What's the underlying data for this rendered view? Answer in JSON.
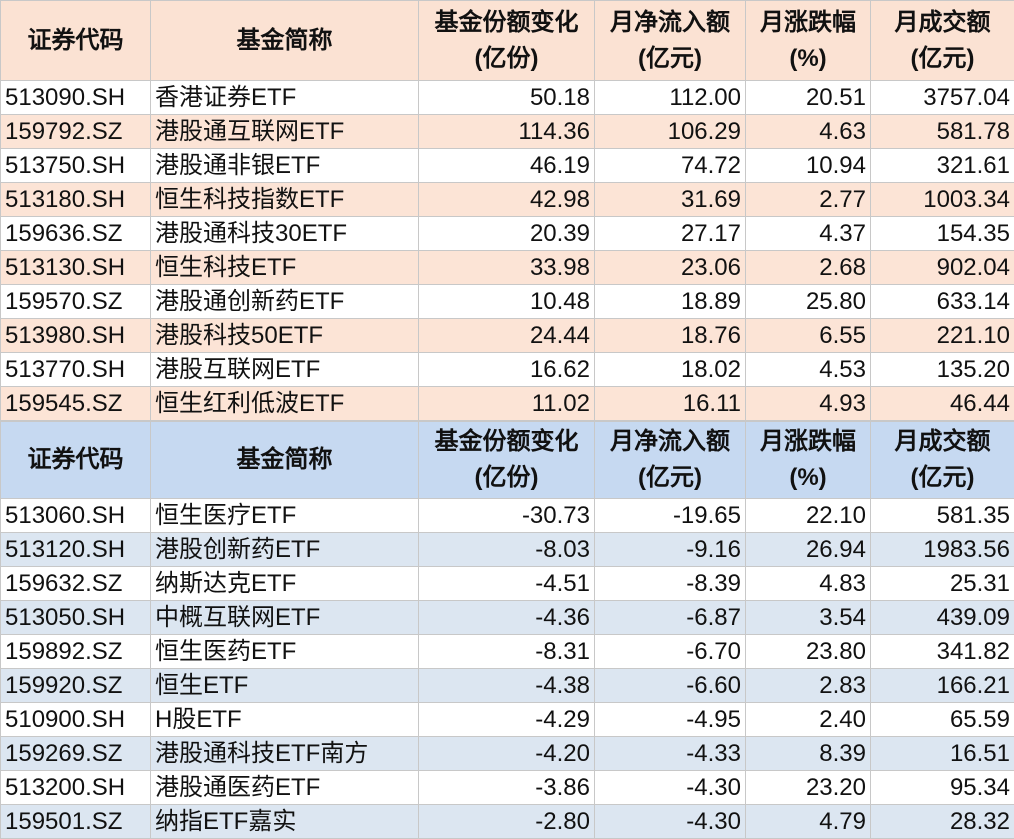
{
  "tables": [
    {
      "header": [
        [
          "证券代码"
        ],
        [
          "基金简称"
        ],
        [
          "基金份额变化",
          "(亿份)"
        ],
        [
          "月净流入额",
          "(亿元)"
        ],
        [
          "月涨跌幅",
          "(%)"
        ],
        [
          "月成交额",
          "(亿元)"
        ]
      ],
      "rows": [
        [
          "513090.SH",
          "香港证券ETF",
          "50.18",
          "112.00",
          "20.51",
          "3757.04"
        ],
        [
          "159792.SZ",
          "港股通互联网ETF",
          "114.36",
          "106.29",
          "4.63",
          "581.78"
        ],
        [
          "513750.SH",
          "港股通非银ETF",
          "46.19",
          "74.72",
          "10.94",
          "321.61"
        ],
        [
          "513180.SH",
          "恒生科技指数ETF",
          "42.98",
          "31.69",
          "2.77",
          "1003.34"
        ],
        [
          "159636.SZ",
          "港股通科技30ETF",
          "20.39",
          "27.17",
          "4.37",
          "154.35"
        ],
        [
          "513130.SH",
          "恒生科技ETF",
          "33.98",
          "23.06",
          "2.68",
          "902.04"
        ],
        [
          "159570.SZ",
          "港股通创新药ETF",
          "10.48",
          "18.89",
          "25.80",
          "633.14"
        ],
        [
          "513980.SH",
          "港股科技50ETF",
          "24.44",
          "18.76",
          "6.55",
          "221.10"
        ],
        [
          "513770.SH",
          "港股互联网ETF",
          "16.62",
          "18.02",
          "4.53",
          "135.20"
        ],
        [
          "159545.SZ",
          "恒生红利低波ETF",
          "11.02",
          "16.11",
          "4.93",
          "46.44"
        ]
      ]
    },
    {
      "header": [
        [
          "证券代码"
        ],
        [
          "基金简称"
        ],
        [
          "基金份额变化",
          "(亿份)"
        ],
        [
          "月净流入额",
          "(亿元)"
        ],
        [
          "月涨跌幅",
          "(%)"
        ],
        [
          "月成交额",
          "(亿元)"
        ]
      ],
      "rows": [
        [
          "513060.SH",
          "恒生医疗ETF",
          "-30.73",
          "-19.65",
          "22.10",
          "581.35"
        ],
        [
          "513120.SH",
          "港股创新药ETF",
          "-8.03",
          "-9.16",
          "26.94",
          "1983.56"
        ],
        [
          "159632.SZ",
          "纳斯达克ETF",
          "-4.51",
          "-8.39",
          "4.83",
          "25.31"
        ],
        [
          "513050.SH",
          "中概互联网ETF",
          "-4.36",
          "-6.87",
          "3.54",
          "439.09"
        ],
        [
          "159892.SZ",
          "恒生医药ETF",
          "-8.31",
          "-6.70",
          "23.80",
          "341.82"
        ],
        [
          "159920.SZ",
          "恒生ETF",
          "-4.38",
          "-6.60",
          "2.83",
          "166.21"
        ],
        [
          "510900.SH",
          "H股ETF",
          "-4.29",
          "-4.95",
          "2.40",
          "65.59"
        ],
        [
          "159269.SZ",
          "港股通科技ETF南方",
          "-4.20",
          "-4.33",
          "8.39",
          "16.51"
        ],
        [
          "513200.SH",
          "港股通医药ETF",
          "-3.86",
          "-4.30",
          "23.20",
          "95.34"
        ],
        [
          "159501.SZ",
          "纳指ETF嘉实",
          "-2.80",
          "-4.30",
          "4.79",
          "28.32"
        ]
      ]
    }
  ]
}
